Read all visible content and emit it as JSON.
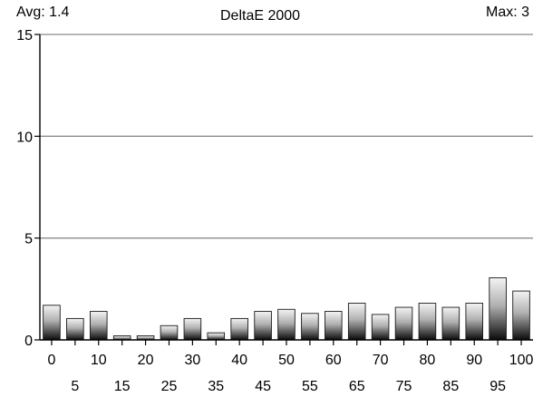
{
  "header": {
    "avg_label": "Avg: 1.4",
    "max_label": "Max: 3"
  },
  "chart_data": {
    "type": "bar",
    "title": "DeltaE 2000",
    "xlabel": "",
    "ylabel": "",
    "ylim": [
      0,
      15
    ],
    "y_ticks": [
      0,
      5,
      10,
      15
    ],
    "grid": true,
    "categories": [
      "0",
      "5",
      "10",
      "15",
      "20",
      "25",
      "30",
      "35",
      "40",
      "45",
      "50",
      "55",
      "60",
      "65",
      "70",
      "75",
      "80",
      "85",
      "90",
      "95",
      "100"
    ],
    "values": [
      1.7,
      1.05,
      1.4,
      0.2,
      0.2,
      0.7,
      1.05,
      0.35,
      1.05,
      1.4,
      1.5,
      1.3,
      1.4,
      1.8,
      1.25,
      1.6,
      1.8,
      1.6,
      1.8,
      3.05,
      2.4
    ],
    "x_tick_labels_upper": [
      "0",
      "10",
      "20",
      "30",
      "40",
      "50",
      "60",
      "70",
      "80",
      "90",
      "100"
    ],
    "x_tick_labels_lower": [
      "5",
      "15",
      "25",
      "35",
      "45",
      "55",
      "65",
      "75",
      "85",
      "95"
    ]
  }
}
